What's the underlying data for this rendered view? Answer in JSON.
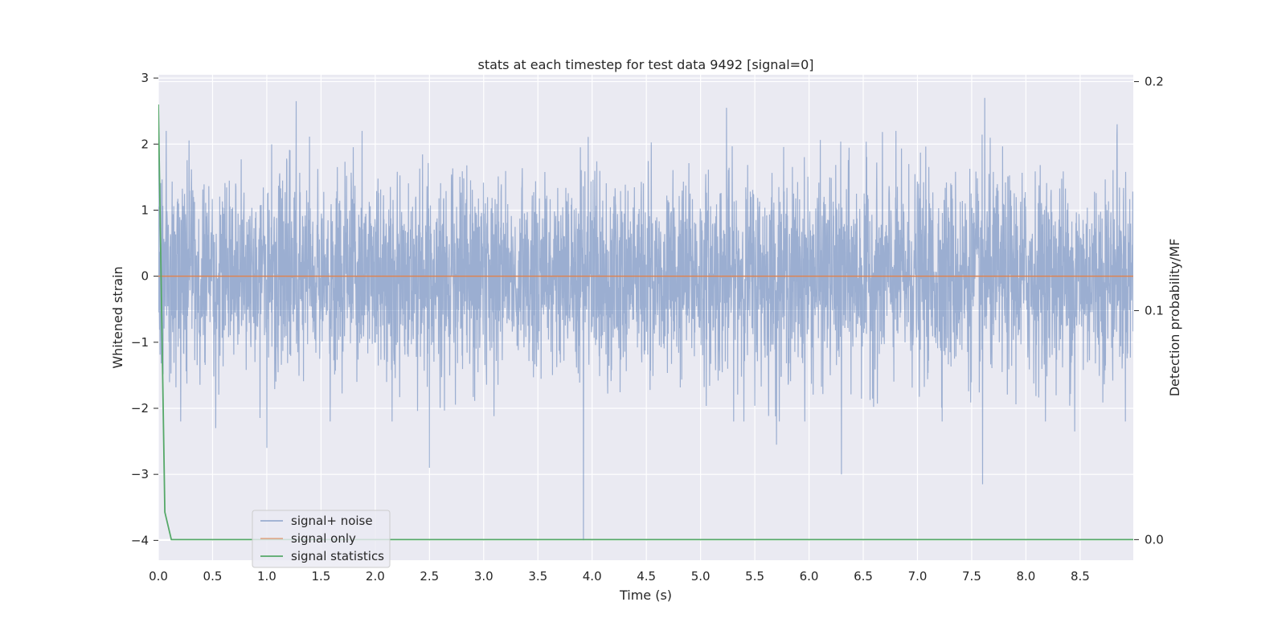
{
  "chart_data": {
    "type": "line",
    "title": "stats at each timestep for test data 9492 [signal=0]",
    "xlabel": "Time (s)",
    "ylabel": "Whitened strain",
    "y2label": "Detection probability/MF",
    "xlim": [
      0.0,
      8.99
    ],
    "ylim": [
      -4.3,
      3.05
    ],
    "y2lim": [
      -0.009,
      0.203
    ],
    "xticks": [
      "0.0",
      "0.5",
      "1.0",
      "1.5",
      "2.0",
      "2.5",
      "3.0",
      "3.5",
      "4.0",
      "4.5",
      "5.0",
      "5.5",
      "6.0",
      "6.5",
      "7.0",
      "7.5",
      "8.0",
      "8.5"
    ],
    "yticks": [
      "3",
      "2",
      "1",
      "0",
      "−1",
      "−2",
      "−3",
      "−4"
    ],
    "y2ticks": [
      "0.2",
      "0.1",
      "0.0"
    ],
    "grid": true,
    "legend_position": "lower-left",
    "series": [
      {
        "name": "signal+ noise",
        "color": "#4c72b0",
        "axis": "left",
        "style": "dense noise",
        "notable_peaks": [
          {
            "x": 1.27,
            "y": 2.65
          },
          {
            "x": 5.24,
            "y": 2.55
          },
          {
            "x": 7.62,
            "y": 2.7
          },
          {
            "x": 8.84,
            "y": 2.3
          }
        ],
        "notable_troughs": [
          {
            "x": 0.53,
            "y": -2.3
          },
          {
            "x": 1.0,
            "y": -2.6
          },
          {
            "x": 2.5,
            "y": -2.9
          },
          {
            "x": 3.92,
            "y": -4.0
          },
          {
            "x": 5.7,
            "y": -2.55
          },
          {
            "x": 6.3,
            "y": -3.0
          },
          {
            "x": 7.6,
            "y": -3.15
          },
          {
            "x": 8.45,
            "y": -2.35
          }
        ]
      },
      {
        "name": "signal only",
        "color": "#dd8452",
        "axis": "left",
        "x": [
          0.0,
          8.99
        ],
        "y": [
          0,
          0
        ]
      },
      {
        "name": "signal statistics",
        "color": "#55a868",
        "axis": "right",
        "x": [
          0.0,
          0.06,
          0.12,
          8.99
        ],
        "y": [
          0.19,
          0.012,
          0.0,
          0.0
        ]
      }
    ]
  }
}
